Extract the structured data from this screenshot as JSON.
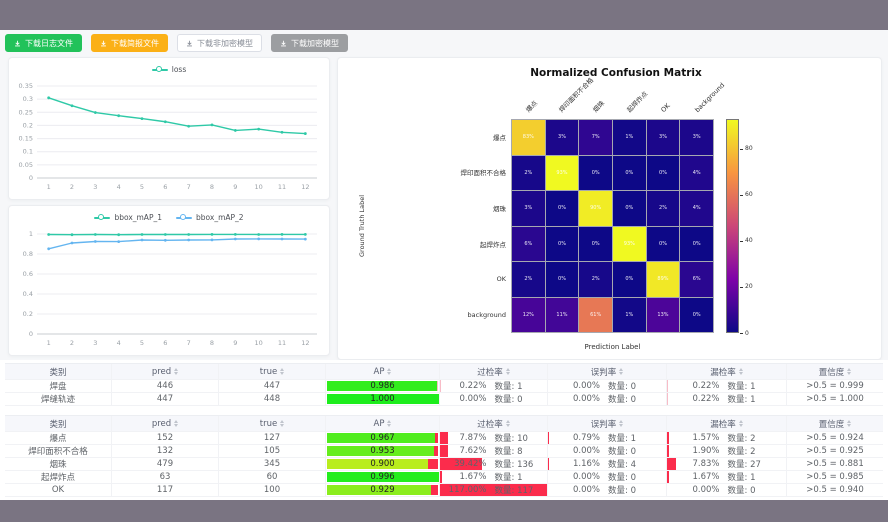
{
  "toolbar": {
    "buttons": [
      {
        "label": "下载日志文件",
        "bg": "#22c25a",
        "fg": "#ffffff",
        "border": "#22c25a"
      },
      {
        "label": "下载简报文件",
        "bg": "#fbb016",
        "fg": "#ffffff",
        "border": "#fbb016"
      },
      {
        "label": "下载非加密模型",
        "bg": "#ffffff",
        "fg": "#878c96",
        "border": "#dcdfe6"
      },
      {
        "label": "下载加密模型",
        "bg": "#9c9ea1",
        "fg": "#ffffff",
        "border": "#9c9ea1"
      }
    ]
  },
  "chart_data": [
    {
      "id": "loss",
      "type": "line",
      "x": [
        1,
        2,
        3,
        4,
        5,
        6,
        7,
        8,
        9,
        10,
        11,
        12
      ],
      "series": [
        {
          "name": "loss",
          "color": "#2fc9a7",
          "values": [
            0.305,
            0.275,
            0.249,
            0.237,
            0.226,
            0.214,
            0.197,
            0.202,
            0.181,
            0.186,
            0.174,
            0.169
          ]
        }
      ],
      "y_ticks": [
        "0",
        "0.05",
        "0.1",
        "0.15",
        "0.2",
        "0.25",
        "0.3",
        "0.35"
      ],
      "ylim": [
        0,
        0.35
      ],
      "grid": true,
      "legend_position": "top"
    },
    {
      "id": "bbox_map",
      "type": "line",
      "x": [
        1,
        2,
        3,
        4,
        5,
        6,
        7,
        8,
        9,
        10,
        11,
        12
      ],
      "series": [
        {
          "name": "bbox_mAP_1",
          "color": "#2fc9a7",
          "values": [
            0.995,
            0.993,
            0.995,
            0.993,
            0.995,
            0.995,
            0.995,
            0.996,
            0.996,
            0.995,
            0.996,
            0.996
          ]
        },
        {
          "name": "bbox_mAP_2",
          "color": "#64b5f0",
          "values": [
            0.852,
            0.91,
            0.925,
            0.924,
            0.94,
            0.937,
            0.94,
            0.941,
            0.95,
            0.951,
            0.95,
            0.949
          ]
        }
      ],
      "y_ticks": [
        "0",
        "0.2",
        "0.4",
        "0.6",
        "0.8",
        "1"
      ],
      "ylim": [
        0,
        1
      ],
      "grid": true,
      "legend_position": "top"
    },
    {
      "id": "confusion_matrix",
      "type": "heatmap",
      "title": "Normalized Confusion Matrix",
      "xlabel": "Prediction Label",
      "ylabel": "Ground Truth Label",
      "labels": [
        "爆点",
        "焊印面积不合格",
        "烟珠",
        "起焊炸点",
        "OK",
        "background"
      ],
      "values_percent": [
        [
          83,
          3,
          7,
          1,
          3,
          3
        ],
        [
          2,
          93,
          0,
          0,
          0,
          4
        ],
        [
          3,
          0,
          90,
          0,
          2,
          4
        ],
        [
          6,
          0,
          0,
          93,
          0,
          0
        ],
        [
          2,
          0,
          2,
          0,
          89,
          6
        ],
        [
          12,
          11,
          61,
          1,
          13,
          0
        ]
      ],
      "colorbar": {
        "ticks": [
          0,
          20,
          40,
          60,
          80
        ],
        "max": 93,
        "colormap": "plasma"
      }
    }
  ],
  "tables": [
    {
      "headers": [
        {
          "label": "类别",
          "sortable": false
        },
        {
          "label": "pred",
          "sortable": true
        },
        {
          "label": "true",
          "sortable": true
        },
        {
          "label": "AP",
          "sortable": true
        },
        {
          "label": "过检率",
          "sortable": true
        },
        {
          "label": "误判率",
          "sortable": true
        },
        {
          "label": "漏检率",
          "sortable": true
        },
        {
          "label": "置信度",
          "sortable": true
        }
      ],
      "ap_remainder_color": "#f8bcc7",
      "rate_bar_color": "#f8bcc7",
      "rows": [
        {
          "label": "焊盘",
          "pred": "446",
          "true": "447",
          "ap": 0.986,
          "ap_text": "0.986",
          "over_rate": "0.22%",
          "over_count": "数量: 1",
          "over_pct": 0.22,
          "false_rate": "0.00%",
          "false_count": "数量: 0",
          "false_pct": 0,
          "miss_rate": "0.22%",
          "miss_count": "数量: 1",
          "miss_pct": 0.22,
          "confidence": ">0.5 = 0.999"
        },
        {
          "label": "焊缝轨迹",
          "pred": "447",
          "true": "448",
          "ap": 1.0,
          "ap_text": "1.000",
          "over_rate": "0.00%",
          "over_count": "数量: 0",
          "over_pct": 0,
          "false_rate": "0.00%",
          "false_count": "数量: 0",
          "false_pct": 0,
          "miss_rate": "0.22%",
          "miss_count": "数量: 1",
          "miss_pct": 0.22,
          "confidence": ">0.5 = 1.000"
        }
      ]
    },
    {
      "headers": [
        {
          "label": "类别",
          "sortable": false
        },
        {
          "label": "pred",
          "sortable": true
        },
        {
          "label": "true",
          "sortable": true
        },
        {
          "label": "AP",
          "sortable": true
        },
        {
          "label": "过检率",
          "sortable": true
        },
        {
          "label": "误判率",
          "sortable": true
        },
        {
          "label": "漏检率",
          "sortable": true
        },
        {
          "label": "置信度",
          "sortable": true
        }
      ],
      "ap_remainder_color": "#fb2c4c",
      "rate_bar_color": "#fb2c4c",
      "rows": [
        {
          "label": "爆点",
          "pred": "152",
          "true": "127",
          "ap": 0.967,
          "ap_text": "0.967",
          "over_rate": "7.87%",
          "over_count": "数量: 10",
          "over_pct": 7.87,
          "false_rate": "0.79%",
          "false_count": "数量: 1",
          "false_pct": 0.79,
          "miss_rate": "1.57%",
          "miss_count": "数量: 2",
          "miss_pct": 1.57,
          "confidence": ">0.5 = 0.924"
        },
        {
          "label": "焊印面积不合格",
          "pred": "132",
          "true": "105",
          "ap": 0.953,
          "ap_text": "0.953",
          "over_rate": "7.62%",
          "over_count": "数量: 8",
          "over_pct": 7.62,
          "false_rate": "0.00%",
          "false_count": "数量: 0",
          "false_pct": 0,
          "miss_rate": "1.90%",
          "miss_count": "数量: 2",
          "miss_pct": 1.9,
          "confidence": ">0.5 = 0.925"
        },
        {
          "label": "烟珠",
          "pred": "479",
          "true": "345",
          "ap": 0.9,
          "ap_text": "0.900",
          "over_rate": "39.42%",
          "over_count": "数量: 136",
          "over_pct": 39.42,
          "false_rate": "1.16%",
          "false_count": "数量: 4",
          "false_pct": 1.16,
          "miss_rate": "7.83%",
          "miss_count": "数量: 27",
          "miss_pct": 7.83,
          "confidence": ">0.5 = 0.881"
        },
        {
          "label": "起焊炸点",
          "pred": "63",
          "true": "60",
          "ap": 0.996,
          "ap_text": "0.996",
          "over_rate": "1.67%",
          "over_count": "数量: 1",
          "over_pct": 1.67,
          "false_rate": "0.00%",
          "false_count": "数量: 0",
          "false_pct": 0,
          "miss_rate": "1.67%",
          "miss_count": "数量: 1",
          "miss_pct": 1.67,
          "confidence": ">0.5 = 0.985"
        },
        {
          "label": "OK",
          "pred": "117",
          "true": "100",
          "ap": 0.929,
          "ap_text": "0.929",
          "over_rate": "117.00%",
          "over_count": "数量: 117",
          "over_pct": 117,
          "false_rate": "0.00%",
          "false_count": "数量: 0",
          "false_pct": 0,
          "miss_rate": "0.00%",
          "miss_count": "数量: 0",
          "miss_pct": 0,
          "confidence": ">0.5 = 0.940"
        }
      ]
    }
  ]
}
